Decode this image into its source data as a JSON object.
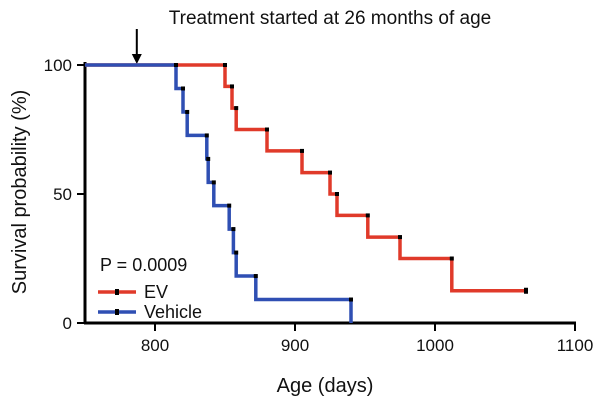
{
  "chart_data": {
    "type": "line",
    "step": true,
    "annotation": "Treatment started at 26 months of age",
    "annotation_x": 787,
    "xlabel": "Age (days)",
    "ylabel": "Survival probability (%)",
    "xlim": [
      750,
      1100
    ],
    "ylim": [
      0,
      100
    ],
    "xticks": [
      800,
      900,
      1000,
      1100
    ],
    "yticks": [
      0,
      50,
      100
    ],
    "pvalue_text": "P = 0.0009",
    "legend_position": "bottom-left",
    "series": [
      {
        "name": "EV",
        "color": "#e03a2a",
        "points": [
          [
            750,
            100
          ],
          [
            850,
            100
          ],
          [
            850,
            91.7
          ],
          [
            855,
            91.7
          ],
          [
            855,
            83.3
          ],
          [
            858,
            83.3
          ],
          [
            858,
            75
          ],
          [
            880,
            75
          ],
          [
            880,
            66.7
          ],
          [
            905,
            66.7
          ],
          [
            905,
            58.3
          ],
          [
            925,
            58.3
          ],
          [
            925,
            50
          ],
          [
            930,
            50
          ],
          [
            930,
            41.7
          ],
          [
            952,
            41.7
          ],
          [
            952,
            33.3
          ],
          [
            975,
            33.3
          ],
          [
            975,
            25
          ],
          [
            1012,
            25
          ],
          [
            1012,
            12.5
          ],
          [
            1065,
            12.5
          ]
        ]
      },
      {
        "name": "Vehicle",
        "color": "#2f4fb3",
        "points": [
          [
            750,
            100
          ],
          [
            815,
            100
          ],
          [
            815,
            90.9
          ],
          [
            820,
            90.9
          ],
          [
            820,
            81.8
          ],
          [
            823,
            81.8
          ],
          [
            823,
            72.7
          ],
          [
            837,
            72.7
          ],
          [
            837,
            63.6
          ],
          [
            838,
            63.6
          ],
          [
            838,
            54.5
          ],
          [
            842,
            54.5
          ],
          [
            842,
            45.5
          ],
          [
            853,
            45.5
          ],
          [
            853,
            36.4
          ],
          [
            856,
            36.4
          ],
          [
            856,
            27.3
          ],
          [
            858,
            27.3
          ],
          [
            858,
            18.2
          ],
          [
            872,
            18.2
          ],
          [
            872,
            9.1
          ],
          [
            940,
            9.1
          ],
          [
            940,
            0
          ]
        ]
      }
    ]
  }
}
